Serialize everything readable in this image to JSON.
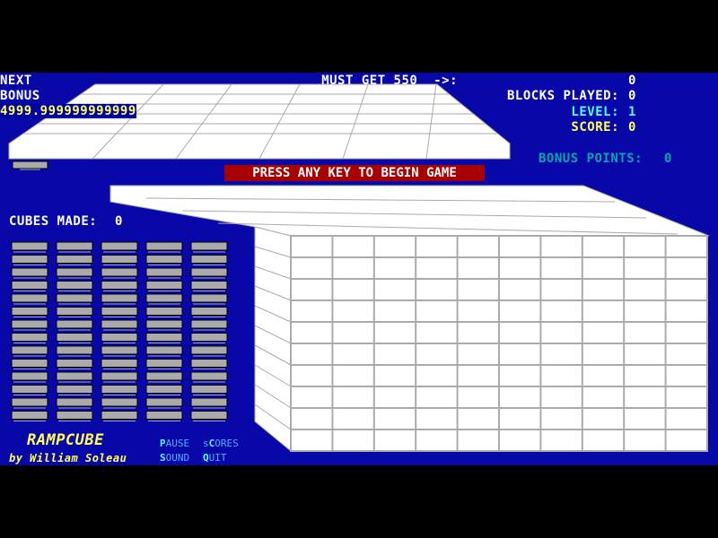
{
  "next_bonus": {
    "label1": "NEXT",
    "label2": "BONUS",
    "value": "4999.999999999999"
  },
  "stats": {
    "must_get": "MUST GET 550  ->:",
    "must_get_value": "0",
    "blocks_played": "BLOCKS PLAYED:",
    "blocks_played_value": "0",
    "level": "LEVEL:",
    "level_value": "1",
    "score": "SCORE:",
    "score_value": "0",
    "bonus_points": "BONUS POINTS:",
    "bonus_points_value": "0"
  },
  "banner": "PRESS ANY KEY TO BEGIN GAME",
  "cubes_made": {
    "label": "CUBES MADE:",
    "value": "0"
  },
  "title": "RAMPCUBE",
  "author": "by William Soleau",
  "menu": [
    {
      "key": "P",
      "rest": "AUSE"
    },
    {
      "key": "C",
      "pre": "s",
      "rest": "ORES"
    },
    {
      "key": "S",
      "rest": "OUND"
    },
    {
      "key": "Q",
      "rest": "UIT"
    }
  ],
  "colors": {
    "background": "#0808a8",
    "banner": "#a80000",
    "level": "#55ffff",
    "score": "#ffff55",
    "bonus": "#00aaaa"
  }
}
